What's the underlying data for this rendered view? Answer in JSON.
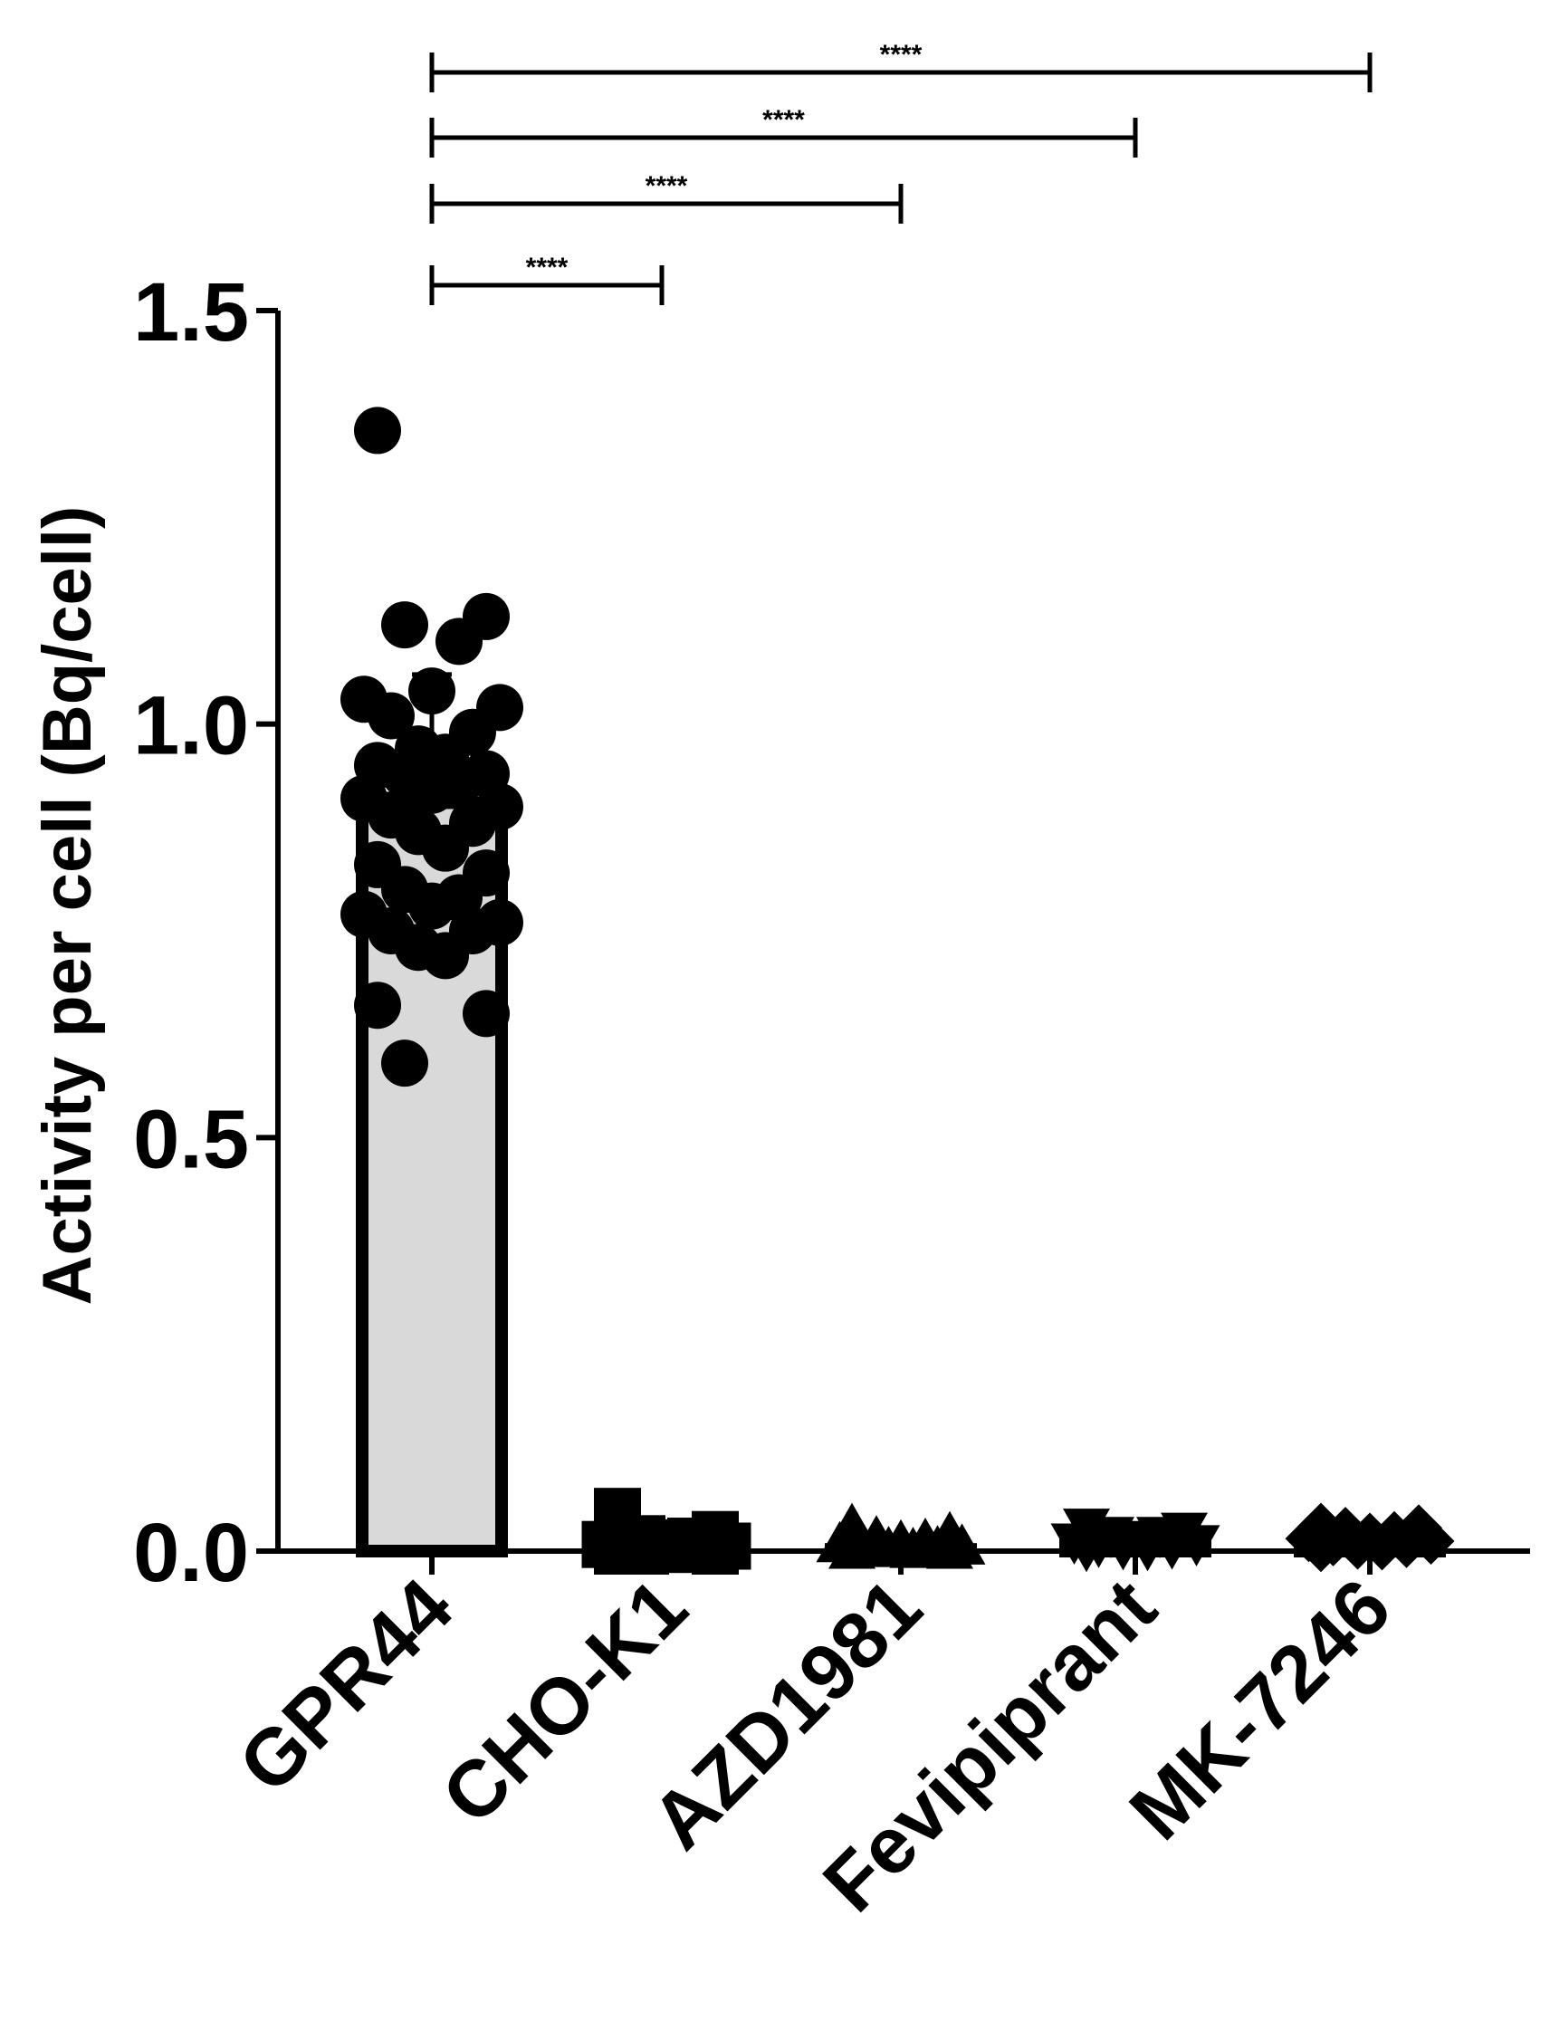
{
  "chart_data": {
    "type": "bar",
    "ylabel": "Activity per cell (Bq/cell)",
    "ylim": [
      0,
      1.5
    ],
    "yticks": [
      "0.0",
      "0.5",
      "1.0",
      "1.5"
    ],
    "categories": [
      "GPR44",
      "CHO-K1",
      "AZD1981",
      "Fevipiprant",
      "MK-7246"
    ],
    "values": [
      0.905,
      0.003,
      0.002,
      0.01,
      0.012
    ],
    "error_upper": [
      1.06,
      0.02,
      0.012,
      0.02,
      0.025
    ],
    "bar_fill": [
      "#d9d9d9",
      "#ffffff",
      "#ffffff",
      "#ffffff",
      "#ffffff"
    ],
    "markers": [
      "circle",
      "square",
      "triangle-up",
      "triangle-down",
      "diamond"
    ],
    "points": [
      [
        1.355,
        1.13,
        1.12,
        1.1,
        1.04,
        1.03,
        1.02,
        1.01,
        0.99,
        0.97,
        0.96,
        0.95,
        0.94,
        0.94,
        0.93,
        0.92,
        0.91,
        0.9,
        0.89,
        0.88,
        0.87,
        0.85,
        0.83,
        0.82,
        0.8,
        0.79,
        0.78,
        0.77,
        0.76,
        0.75,
        0.75,
        0.73,
        0.72,
        0.66,
        0.65,
        0.59
      ],
      [
        0.048,
        0.02,
        0.015,
        0.012,
        0.01,
        0.008,
        0.006,
        0.005,
        0.004,
        0.003,
        0.002,
        0.0,
        0.0,
        0.0
      ],
      [
        0.03,
        0.02,
        0.015,
        0.012,
        0.01,
        0.008,
        0.005,
        0.004,
        0.003,
        0.002,
        0.001,
        0.0,
        0.0
      ],
      [
        0.03,
        0.025,
        0.02,
        0.02,
        0.015,
        0.012,
        0.01,
        0.008,
        0.006,
        0.005,
        0.004,
        0.003
      ],
      [
        0.03,
        0.028,
        0.025,
        0.02,
        0.018,
        0.015,
        0.012,
        0.01,
        0.008,
        0.006,
        0.005,
        0.003
      ]
    ],
    "significance": [
      {
        "from": "GPR44",
        "to": "CHO-K1",
        "label": "****"
      },
      {
        "from": "GPR44",
        "to": "AZD1981",
        "label": "****"
      },
      {
        "from": "GPR44",
        "to": "Fevipiprant",
        "label": "****"
      },
      {
        "from": "GPR44",
        "to": "MK-7246",
        "label": "****"
      }
    ],
    "grid": false
  }
}
